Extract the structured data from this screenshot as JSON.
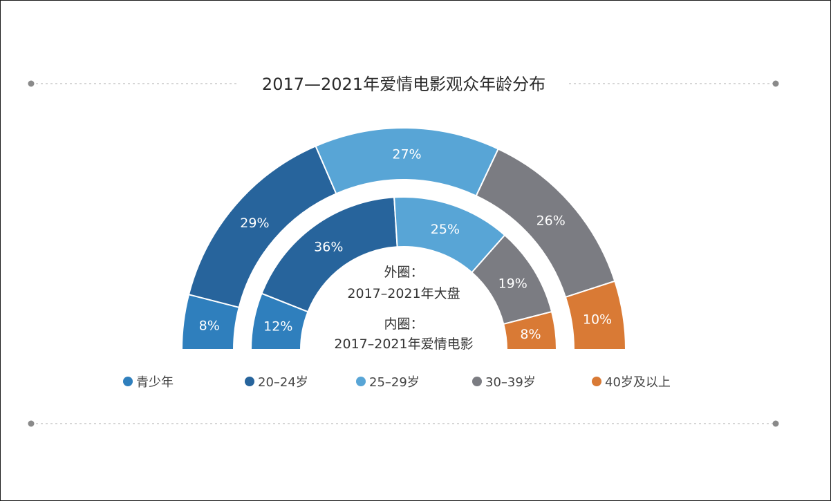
{
  "chart_data": {
    "type": "pie",
    "subtype": "half-donut (two concentric rings)",
    "title": "2017—2021年爱情电影观众年龄分布",
    "categories": [
      "青少年",
      "20–24岁",
      "25–29岁",
      "30–39岁",
      "40岁及以上"
    ],
    "colors": [
      "#2f7fbd",
      "#27649c",
      "#58a5d6",
      "#7b7c82",
      "#d97a35"
    ],
    "series": [
      {
        "name": "外圈：2017–2021年大盘",
        "ring": "outer",
        "values": [
          8,
          29,
          27,
          26,
          10
        ],
        "labels": [
          "8%",
          "29%",
          "27%",
          "26%",
          "10%"
        ]
      },
      {
        "name": "内圈：2017–2021年爱情电影",
        "ring": "inner",
        "values": [
          12,
          36,
          25,
          19,
          8
        ],
        "labels": [
          "12%",
          "36%",
          "25%",
          "19%",
          "8%"
        ]
      }
    ],
    "center_notes": [
      "外圈：",
      "2017–2021年大盘",
      "内圈：",
      "2017–2021年爱情电影"
    ],
    "legend_position": "bottom"
  }
}
